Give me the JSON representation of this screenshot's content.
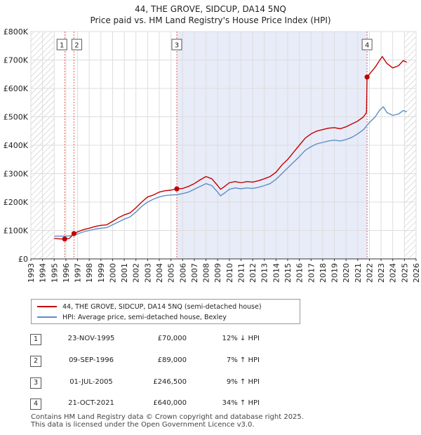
{
  "title_line1": "44, THE GROVE, SIDCUP, DA14 5NQ",
  "title_line2": "Price paid vs. HM Land Registry's House Price Index (HPI)",
  "colors": {
    "price_line": "#c00000",
    "hpi_line": "#5b8ec8",
    "shade": "#e8ecf8",
    "hatch": "#bbbbbb",
    "marker_line": "#e06060",
    "grid": "#dddddd"
  },
  "legend": {
    "price_label": "44, THE GROVE, SIDCUP, DA14 5NQ (semi-detached house)",
    "hpi_label": "HPI: Average price, semi-detached house, Bexley"
  },
  "transactions": [
    {
      "num": "1",
      "date": "23-NOV-1995",
      "price": "£70,000",
      "hpi": "12% ↓ HPI"
    },
    {
      "num": "2",
      "date": "09-SEP-1996",
      "price": "£89,000",
      "hpi": "7% ↑ HPI"
    },
    {
      "num": "3",
      "date": "01-JUL-2005",
      "price": "£246,500",
      "hpi": "9% ↑ HPI"
    },
    {
      "num": "4",
      "date": "21-OCT-2021",
      "price": "£640,000",
      "hpi": "34% ↑ HPI"
    }
  ],
  "footer": {
    "line1": "Contains HM Land Registry data © Crown copyright and database right 2025.",
    "line2": "This data is licensed under the Open Government Licence v3.0."
  },
  "chart_data": {
    "type": "line",
    "title": "44, THE GROVE, SIDCUP, DA14 5NQ",
    "subtitle": "Price paid vs. HM Land Registry's House Price Index (HPI)",
    "xlabel": "",
    "ylabel": "",
    "xlim": [
      1993,
      2026
    ],
    "ylim": [
      0,
      800000
    ],
    "x_ticks": [
      1993,
      1994,
      1995,
      1996,
      1997,
      1998,
      1999,
      2000,
      2001,
      2002,
      2003,
      2004,
      2005,
      2006,
      2007,
      2008,
      2009,
      2010,
      2011,
      2012,
      2013,
      2014,
      2015,
      2016,
      2017,
      2018,
      2019,
      2020,
      2021,
      2022,
      2023,
      2024,
      2025,
      2026
    ],
    "y_ticks": [
      {
        "value": 0,
        "label": "£0"
      },
      {
        "value": 100000,
        "label": "£100K"
      },
      {
        "value": 200000,
        "label": "£200K"
      },
      {
        "value": 300000,
        "label": "£300K"
      },
      {
        "value": 400000,
        "label": "£400K"
      },
      {
        "value": 500000,
        "label": "£500K"
      },
      {
        "value": 600000,
        "label": "£600K"
      },
      {
        "value": 700000,
        "label": "£700K"
      },
      {
        "value": 800000,
        "label": "£800K"
      }
    ],
    "hatched_ranges": [
      [
        1993,
        1995
      ],
      [
        2025.0,
        2026
      ]
    ],
    "shaded_range": [
      2005.5,
      2021.8
    ],
    "sales": [
      {
        "label": "1",
        "x": 1995.9,
        "y": 70000
      },
      {
        "label": "2",
        "x": 1996.69,
        "y": 89000
      },
      {
        "label": "3",
        "x": 2005.5,
        "y": 246500
      },
      {
        "label": "4",
        "x": 2021.8,
        "y": 640000
      }
    ],
    "series": [
      {
        "name": "44, THE GROVE, SIDCUP, DA14 5NQ (semi-detached house)",
        "points": [
          [
            1995.0,
            72000
          ],
          [
            1995.5,
            70000
          ],
          [
            1995.9,
            70000
          ],
          [
            1996.3,
            72000
          ],
          [
            1996.69,
            89000
          ],
          [
            1997.0,
            95000
          ],
          [
            1997.5,
            103000
          ],
          [
            1998.0,
            108000
          ],
          [
            1998.5,
            114000
          ],
          [
            1999.0,
            118000
          ],
          [
            1999.5,
            120000
          ],
          [
            2000.0,
            132000
          ],
          [
            2000.5,
            145000
          ],
          [
            2001.0,
            155000
          ],
          [
            2001.5,
            162000
          ],
          [
            2002.0,
            180000
          ],
          [
            2002.5,
            200000
          ],
          [
            2003.0,
            218000
          ],
          [
            2003.5,
            225000
          ],
          [
            2004.0,
            235000
          ],
          [
            2004.5,
            240000
          ],
          [
            2005.0,
            242000
          ],
          [
            2005.5,
            246500
          ],
          [
            2006.0,
            248000
          ],
          [
            2006.5,
            255000
          ],
          [
            2007.0,
            265000
          ],
          [
            2007.5,
            278000
          ],
          [
            2008.0,
            290000
          ],
          [
            2008.5,
            282000
          ],
          [
            2009.0,
            258000
          ],
          [
            2009.25,
            245000
          ],
          [
            2009.6,
            255000
          ],
          [
            2010.0,
            268000
          ],
          [
            2010.5,
            272000
          ],
          [
            2011.0,
            268000
          ],
          [
            2011.5,
            272000
          ],
          [
            2012.0,
            270000
          ],
          [
            2012.5,
            275000
          ],
          [
            2013.0,
            282000
          ],
          [
            2013.5,
            290000
          ],
          [
            2014.0,
            305000
          ],
          [
            2014.5,
            330000
          ],
          [
            2015.0,
            350000
          ],
          [
            2015.5,
            375000
          ],
          [
            2016.0,
            400000
          ],
          [
            2016.5,
            425000
          ],
          [
            2017.0,
            440000
          ],
          [
            2017.5,
            450000
          ],
          [
            2018.0,
            455000
          ],
          [
            2018.5,
            460000
          ],
          [
            2019.0,
            462000
          ],
          [
            2019.5,
            458000
          ],
          [
            2020.0,
            465000
          ],
          [
            2020.5,
            475000
          ],
          [
            2021.0,
            485000
          ],
          [
            2021.5,
            500000
          ],
          [
            2021.75,
            515000
          ],
          [
            2021.8,
            640000
          ],
          [
            2022.0,
            650000
          ],
          [
            2022.5,
            675000
          ],
          [
            2022.9,
            700000
          ],
          [
            2023.1,
            712000
          ],
          [
            2023.5,
            688000
          ],
          [
            2024.0,
            672000
          ],
          [
            2024.5,
            680000
          ],
          [
            2024.9,
            698000
          ],
          [
            2025.2,
            692000
          ]
        ]
      },
      {
        "name": "HPI: Average price, semi-detached house, Bexley",
        "points": [
          [
            1995.0,
            80000
          ],
          [
            1995.5,
            80000
          ],
          [
            1996.0,
            80000
          ],
          [
            1996.5,
            82000
          ],
          [
            1997.0,
            88000
          ],
          [
            1997.5,
            95000
          ],
          [
            1998.0,
            100000
          ],
          [
            1998.5,
            105000
          ],
          [
            1999.0,
            108000
          ],
          [
            1999.5,
            110000
          ],
          [
            2000.0,
            120000
          ],
          [
            2000.5,
            130000
          ],
          [
            2001.0,
            140000
          ],
          [
            2001.5,
            148000
          ],
          [
            2002.0,
            165000
          ],
          [
            2002.5,
            185000
          ],
          [
            2003.0,
            200000
          ],
          [
            2003.5,
            210000
          ],
          [
            2004.0,
            218000
          ],
          [
            2004.5,
            223000
          ],
          [
            2005.0,
            225000
          ],
          [
            2005.5,
            226000
          ],
          [
            2006.0,
            230000
          ],
          [
            2006.5,
            235000
          ],
          [
            2007.0,
            245000
          ],
          [
            2007.5,
            255000
          ],
          [
            2008.0,
            265000
          ],
          [
            2008.5,
            258000
          ],
          [
            2009.0,
            235000
          ],
          [
            2009.25,
            222000
          ],
          [
            2009.6,
            232000
          ],
          [
            2010.0,
            245000
          ],
          [
            2010.5,
            250000
          ],
          [
            2011.0,
            247000
          ],
          [
            2011.5,
            250000
          ],
          [
            2012.0,
            248000
          ],
          [
            2012.5,
            252000
          ],
          [
            2013.0,
            258000
          ],
          [
            2013.5,
            265000
          ],
          [
            2014.0,
            280000
          ],
          [
            2014.5,
            300000
          ],
          [
            2015.0,
            320000
          ],
          [
            2015.5,
            340000
          ],
          [
            2016.0,
            360000
          ],
          [
            2016.5,
            382000
          ],
          [
            2017.0,
            395000
          ],
          [
            2017.5,
            405000
          ],
          [
            2018.0,
            410000
          ],
          [
            2018.5,
            415000
          ],
          [
            2019.0,
            418000
          ],
          [
            2019.5,
            415000
          ],
          [
            2020.0,
            420000
          ],
          [
            2020.5,
            428000
          ],
          [
            2021.0,
            440000
          ],
          [
            2021.5,
            455000
          ],
          [
            2022.0,
            480000
          ],
          [
            2022.5,
            500000
          ],
          [
            2022.9,
            525000
          ],
          [
            2023.2,
            535000
          ],
          [
            2023.5,
            515000
          ],
          [
            2024.0,
            505000
          ],
          [
            2024.5,
            510000
          ],
          [
            2024.9,
            522000
          ],
          [
            2025.2,
            518000
          ]
        ]
      }
    ]
  }
}
